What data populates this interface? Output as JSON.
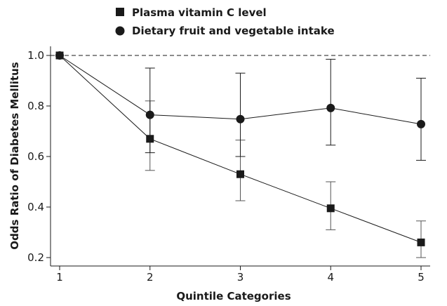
{
  "chart_data": {
    "type": "line",
    "xlabel": "Quintile Categories",
    "ylabel": "Odds Ratio of Diabetes Mellitus",
    "x": [
      1,
      2,
      3,
      4,
      5
    ],
    "x_ticks": [
      "1",
      "2",
      "3",
      "4",
      "5"
    ],
    "y_ticks": [
      "0.2",
      "0.4",
      "0.6",
      "0.8",
      "1.0"
    ],
    "xlim": [
      1,
      5
    ],
    "ylim": [
      0.18,
      1.03
    ],
    "reference_line": 1.0,
    "grid": false,
    "legend_position": "top-left",
    "series": [
      {
        "name": "Plasma vitamin C level",
        "marker": "square",
        "values": [
          1.0,
          0.67,
          0.53,
          0.395,
          0.26
        ],
        "lower": [
          1.0,
          0.545,
          0.425,
          0.31,
          0.2
        ],
        "upper": [
          1.0,
          0.82,
          0.665,
          0.5,
          0.345
        ],
        "color": "#1a1a1a",
        "errorbar_color": "#555555"
      },
      {
        "name": "Dietary fruit and vegetable intake",
        "marker": "circle",
        "values": [
          1.0,
          0.765,
          0.748,
          0.792,
          0.728
        ],
        "lower": [
          1.0,
          0.615,
          0.6,
          0.645,
          0.585
        ],
        "upper": [
          1.0,
          0.95,
          0.93,
          0.985,
          0.91
        ],
        "color": "#1a1a1a",
        "errorbar_color": "#1a1a1a"
      }
    ]
  }
}
